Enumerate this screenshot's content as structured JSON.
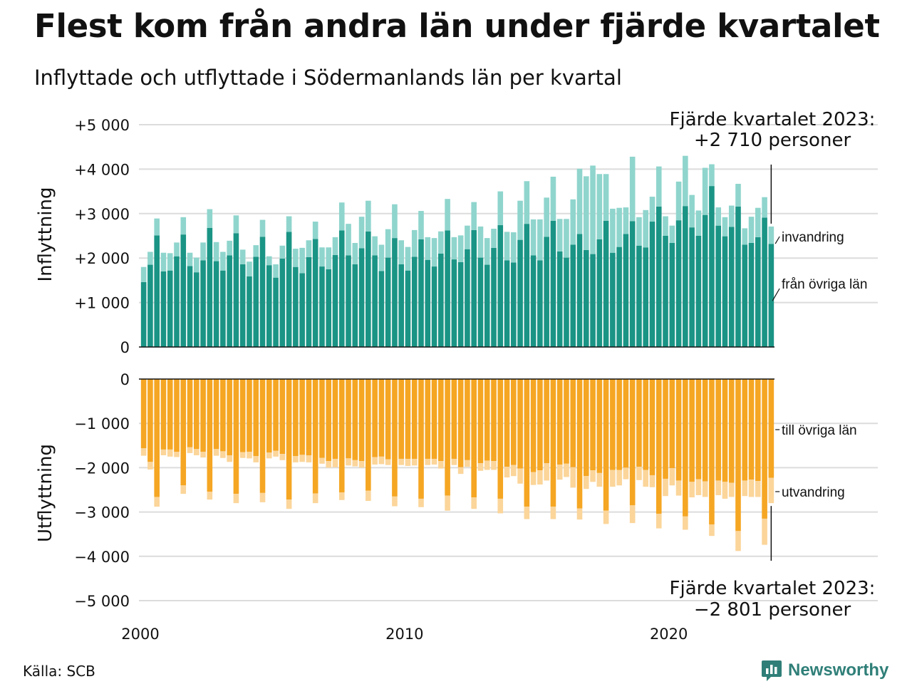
{
  "title": "Flest kom från andra län under fjärde kvartalet",
  "subtitle": "Inflyttade och utflyttade i Södermanlands län per kvartal",
  "source": "Källa: SCB",
  "brand": "Newsworthy",
  "chart_data": {
    "type": "bar",
    "stacked": true,
    "grid": true,
    "panels": [
      {
        "name": "Inflyttning",
        "ylim": [
          0,
          5000
        ],
        "ticks": [
          "0",
          "+1 000",
          "+2 000",
          "+3 000",
          "+4 000",
          "+5 000"
        ],
        "tick_values": [
          0,
          1000,
          2000,
          3000,
          4000,
          5000
        ],
        "series_labels": [
          "från övriga län",
          "invandring"
        ],
        "colors": [
          "#1a9485",
          "#8fd5cd"
        ],
        "annotation": [
          "Fjärde kvartalet 2023:",
          "+2 710 personer"
        ]
      },
      {
        "name": "Utflyttning",
        "ylim": [
          -5000,
          0
        ],
        "ticks": [
          "0",
          "−1 000",
          "−2 000",
          "−3 000",
          "−4 000",
          "−5 000"
        ],
        "tick_values": [
          0,
          -1000,
          -2000,
          -3000,
          -4000,
          -5000
        ],
        "series_labels": [
          "till övriga län",
          "utvandring"
        ],
        "colors": [
          "#f5a623",
          "#fbd59a"
        ],
        "annotation": [
          "Fjärde kvartalet 2023:",
          "−2 801 personer"
        ]
      }
    ],
    "x_ticks": [
      {
        "label": "2000",
        "year": 2000
      },
      {
        "label": "2010",
        "year": 2010
      },
      {
        "label": "2020",
        "year": 2020
      }
    ],
    "quarters": [
      "2000K1",
      "2000K2",
      "2000K3",
      "2000K4",
      "2001K1",
      "2001K2",
      "2001K3",
      "2001K4",
      "2002K1",
      "2002K2",
      "2002K3",
      "2002K4",
      "2003K1",
      "2003K2",
      "2003K3",
      "2003K4",
      "2004K1",
      "2004K2",
      "2004K3",
      "2004K4",
      "2005K1",
      "2005K2",
      "2005K3",
      "2005K4",
      "2006K1",
      "2006K2",
      "2006K3",
      "2006K4",
      "2007K1",
      "2007K2",
      "2007K3",
      "2007K4",
      "2008K1",
      "2008K2",
      "2008K3",
      "2008K4",
      "2009K1",
      "2009K2",
      "2009K3",
      "2009K4",
      "2010K1",
      "2010K2",
      "2010K3",
      "2010K4",
      "2011K1",
      "2011K2",
      "2011K3",
      "2011K4",
      "2012K1",
      "2012K2",
      "2012K3",
      "2012K4",
      "2013K1",
      "2013K2",
      "2013K3",
      "2013K4",
      "2014K1",
      "2014K2",
      "2014K3",
      "2014K4",
      "2015K1",
      "2015K2",
      "2015K3",
      "2015K4",
      "2016K1",
      "2016K2",
      "2016K3",
      "2016K4",
      "2017K1",
      "2017K2",
      "2017K3",
      "2017K4",
      "2018K1",
      "2018K2",
      "2018K3",
      "2018K4",
      "2019K1",
      "2019K2",
      "2019K3",
      "2019K4",
      "2020K1",
      "2020K2",
      "2020K3",
      "2020K4",
      "2021K1",
      "2021K2",
      "2021K3",
      "2021K4",
      "2022K1",
      "2022K2",
      "2022K3",
      "2022K4",
      "2023K1",
      "2023K2",
      "2023K3",
      "2023K4"
    ],
    "series": [
      {
        "name": "från övriga län",
        "values": [
          1460,
          1850,
          2510,
          1700,
          1720,
          2040,
          2530,
          1820,
          1680,
          1950,
          2680,
          1930,
          1720,
          2060,
          2560,
          1860,
          1590,
          2030,
          2480,
          1840,
          1560,
          1990,
          2590,
          1800,
          1660,
          2020,
          2430,
          1810,
          1750,
          2070,
          2620,
          2060,
          1860,
          2220,
          2600,
          2060,
          1710,
          2010,
          2450,
          1860,
          1720,
          2030,
          2420,
          1960,
          1810,
          2100,
          2620,
          1970,
          1910,
          2200,
          2630,
          2010,
          1850,
          2230,
          2740,
          1950,
          1900,
          2410,
          2770,
          2060,
          1950,
          2480,
          2840,
          2150,
          2010,
          2300,
          2540,
          2180,
          2090,
          2420,
          2840,
          2120,
          2250,
          2540,
          2830,
          2280,
          2240,
          2820,
          3160,
          2500,
          2340,
          2850,
          3170,
          2690,
          2500,
          2970,
          3620,
          2730,
          2490,
          2700,
          3160,
          2300,
          2340,
          2470,
          2910,
          2320
        ]
      },
      {
        "name": "invandring",
        "values": [
          340,
          290,
          380,
          420,
          390,
          310,
          390,
          300,
          330,
          400,
          420,
          430,
          420,
          330,
          400,
          330,
          330,
          260,
          380,
          200,
          300,
          290,
          350,
          410,
          570,
          380,
          390,
          430,
          490,
          400,
          630,
          710,
          480,
          710,
          690,
          430,
          590,
          640,
          760,
          540,
          530,
          600,
          640,
          510,
          640,
          500,
          710,
          500,
          600,
          530,
          630,
          700,
          600,
          430,
          760,
          640,
          680,
          880,
          960,
          810,
          920,
          880,
          990,
          730,
          870,
          1020,
          1470,
          1660,
          1990,
          1470,
          1050,
          990,
          880,
          600,
          1450,
          640,
          840,
          560,
          900,
          440,
          390,
          870,
          1130,
          730,
          570,
          1060,
          490,
          410,
          430,
          480,
          510,
          370,
          590,
          660,
          460,
          390
        ]
      },
      {
        "name": "till övriga län",
        "values": [
          -1560,
          -1870,
          -2660,
          -1590,
          -1590,
          -1640,
          -2400,
          -1540,
          -1580,
          -1640,
          -2540,
          -1580,
          -1630,
          -1720,
          -2590,
          -1650,
          -1640,
          -1740,
          -2570,
          -1660,
          -1620,
          -1690,
          -2720,
          -1740,
          -1710,
          -1720,
          -2580,
          -1780,
          -1850,
          -1800,
          -2560,
          -1790,
          -1830,
          -1850,
          -2520,
          -1760,
          -1750,
          -1810,
          -2650,
          -1800,
          -1800,
          -1800,
          -2700,
          -1800,
          -1800,
          -1850,
          -2630,
          -1800,
          -1990,
          -1830,
          -2670,
          -1900,
          -1840,
          -1850,
          -2700,
          -1980,
          -1940,
          -2020,
          -2880,
          -2100,
          -2060,
          -1900,
          -2880,
          -1930,
          -1910,
          -1990,
          -2920,
          -2190,
          -2060,
          -2120,
          -2970,
          -2050,
          -2050,
          -2000,
          -2850,
          -1980,
          -2050,
          -2170,
          -3040,
          -2250,
          -2010,
          -2290,
          -3100,
          -2320,
          -2260,
          -2310,
          -3280,
          -2290,
          -2320,
          -2340,
          -3430,
          -2290,
          -2270,
          -2300,
          -3150,
          -2230
        ]
      },
      {
        "name": "utvandring",
        "values": [
          -170,
          -170,
          -220,
          -130,
          -160,
          -120,
          -190,
          -130,
          -140,
          -130,
          -180,
          -150,
          -150,
          -150,
          -210,
          -130,
          -150,
          -140,
          -210,
          -130,
          -130,
          -140,
          -210,
          -140,
          -160,
          -160,
          -220,
          -130,
          -150,
          -190,
          -170,
          -160,
          -140,
          -150,
          -230,
          -170,
          -170,
          -130,
          -220,
          -140,
          -160,
          -150,
          -190,
          -140,
          -130,
          -170,
          -340,
          -140,
          -150,
          -150,
          -260,
          -170,
          -210,
          -200,
          -330,
          -240,
          -250,
          -340,
          -280,
          -290,
          -320,
          -390,
          -280,
          -340,
          -300,
          -460,
          -250,
          -290,
          -260,
          -310,
          -300,
          -380,
          -350,
          -260,
          -400,
          -300,
          -380,
          -270,
          -330,
          -390,
          -390,
          -340,
          -300,
          -350,
          -360,
          -350,
          -260,
          -330,
          -380,
          -320,
          -450,
          -350,
          -390,
          -360,
          -590,
          -570
        ]
      }
    ]
  }
}
